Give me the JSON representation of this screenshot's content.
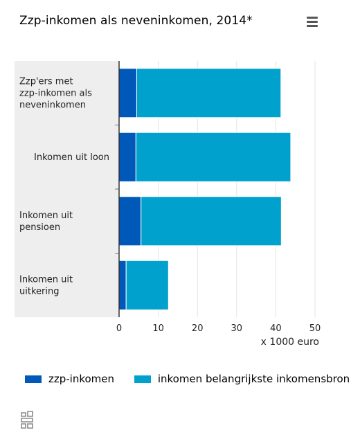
{
  "chart_data": {
    "type": "bar",
    "orientation": "horizontal",
    "stacked": true,
    "title": "Zzp-inkomen als neveninkomen, 2014*",
    "categories": [
      "Zzp'ers met zzp-inkomen als neveninkomen",
      "Inkomen uit loon",
      "Inkomen uit pensioen",
      "Inkomen uit uitkering"
    ],
    "category_lines": [
      [
        "Zzp'ers met",
        "zzp-inkomen als",
        "neveninkomen"
      ],
      [
        "Inkomen uit loon"
      ],
      [
        "Inkomen uit",
        "pensioen"
      ],
      [
        "Inkomen uit",
        "uitkering"
      ]
    ],
    "series": [
      {
        "name": "zzp-inkomen",
        "color": "#0058b8",
        "values": [
          4.5,
          4.3,
          5.6,
          1.8
        ]
      },
      {
        "name": "inkomen belangrijkste inkomensbron",
        "color": "#00a1cd",
        "values": [
          36.8,
          39.5,
          35.8,
          10.8
        ]
      }
    ],
    "xlim": [
      0,
      50
    ],
    "xticks": [
      "0",
      "10",
      "20",
      "30",
      "40",
      "50"
    ],
    "xlabel": "x 1000 euro",
    "grid": true,
    "legend_position": "bottom"
  },
  "legend_labels": [
    "zzp-inkomen",
    "inkomen belangrijkste inkomensbron"
  ],
  "icons": {
    "menu": "hamburger-menu-icon",
    "logo": "cbs-logo-icon"
  }
}
